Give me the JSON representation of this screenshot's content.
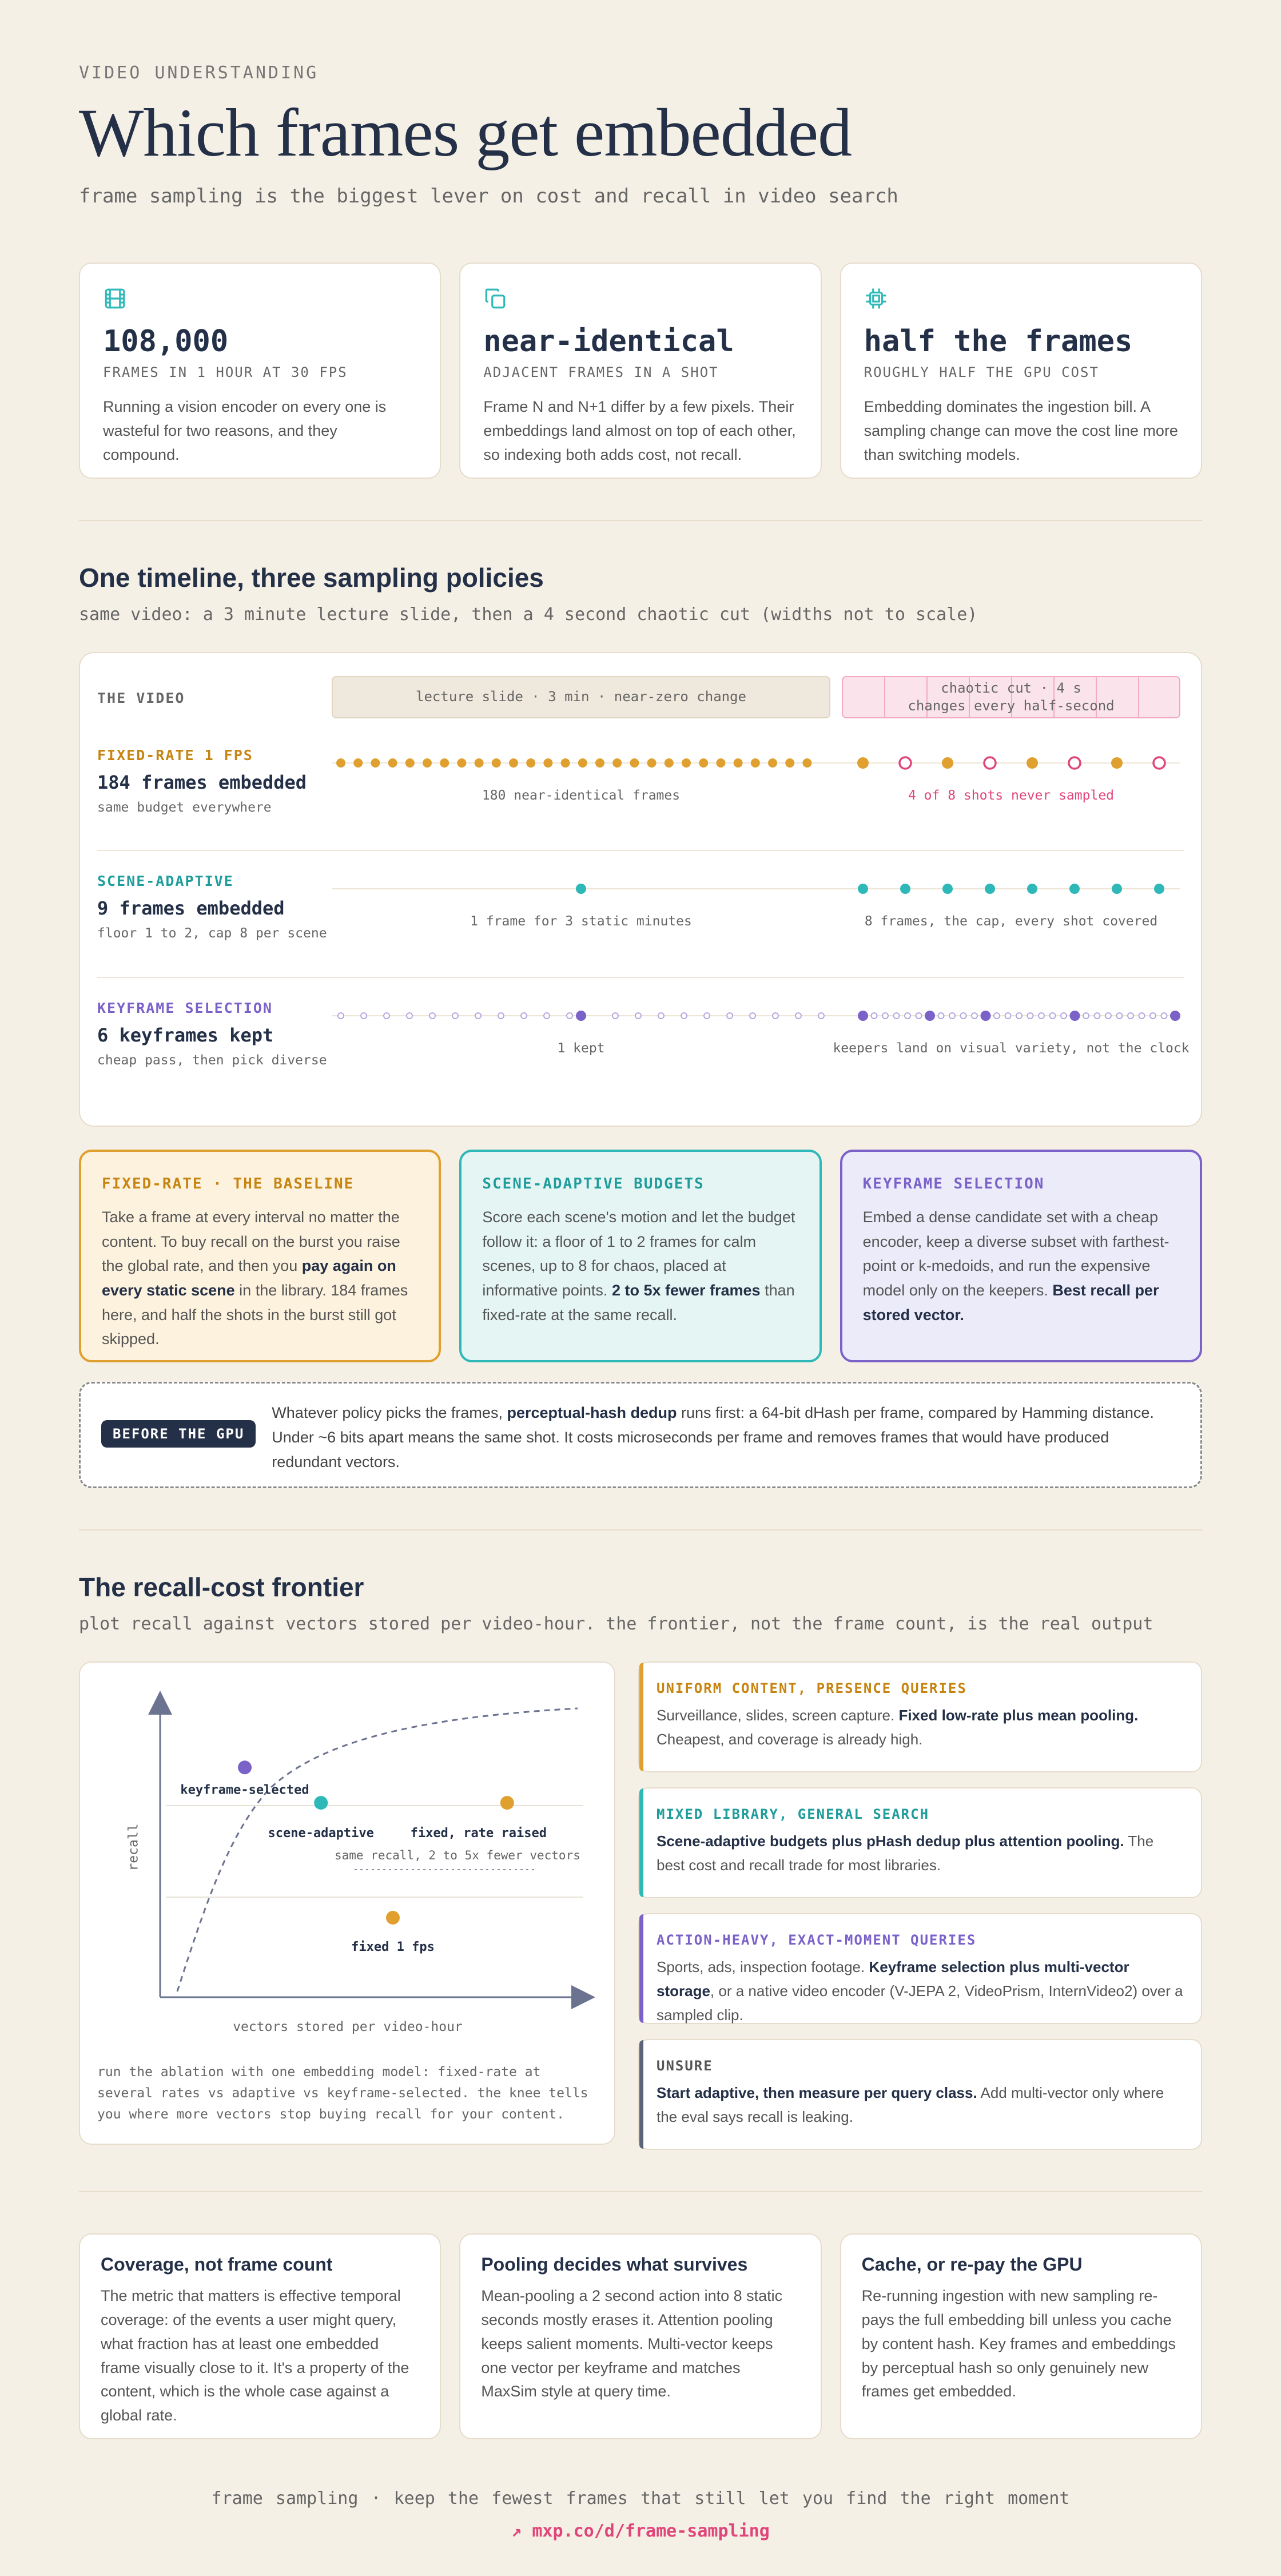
{
  "header": {
    "eyebrow": "VIDEO UNDERSTANDING",
    "title": "Which frames get embedded",
    "subtitle": "frame sampling is the biggest lever on cost and recall in video search"
  },
  "stats": [
    {
      "icon": "film-icon",
      "value": "108,000",
      "caption": "FRAMES IN 1 HOUR AT 30 FPS",
      "text": "Running a vision encoder on every one is wasteful for two reasons, and they compound."
    },
    {
      "icon": "copy-icon",
      "value": "near-identical",
      "caption": "ADJACENT FRAMES IN A SHOT",
      "text": "Frame N and N+1 differ by a few pixels. Their embeddings land almost on top of each other, so indexing both adds cost, not recall."
    },
    {
      "icon": "chip-icon",
      "value": "half the frames",
      "caption": "ROUGHLY HALF THE GPU COST",
      "text": "Embedding dominates the ingestion bill. A sampling change can move the cost line more than switching models."
    }
  ],
  "timeline": {
    "title": "One timeline, three sampling policies",
    "subtitle": "same video: a 3 minute lecture slide, then a 4 second chaotic cut (widths not to scale)",
    "video_label": "THE VIDEO",
    "lecture_segment": "lecture slide · 3 min · near-zero change",
    "chaos_segment_line1": "chaotic cut · 4 s",
    "chaos_segment_line2": "changes every half-second",
    "policies": [
      {
        "label": "FIXED-RATE 1 FPS",
        "count": "184 frames embedded",
        "note": "same budget everywhere",
        "caption_left": "180 near-identical frames",
        "caption_right": "4 of 8 shots never sampled",
        "color": "#e0a030"
      },
      {
        "label": "SCENE-ADAPTIVE",
        "count": "9 frames embedded",
        "note": "floor 1 to 2, cap 8 per scene",
        "caption_left": "1 frame for 3 static minutes",
        "caption_right": "8 frames, the cap, every shot covered",
        "color": "#2eb8b8"
      },
      {
        "label": "KEYFRAME SELECTION",
        "count": "6 keyframes kept",
        "note": "cheap pass, then pick diverse",
        "caption_left": "1 kept",
        "caption_right": "keepers land on visual variety, not the clock",
        "color": "#7b62c9"
      }
    ]
  },
  "policy_cards": {
    "fixed": {
      "title": "FIXED-RATE · THE BASELINE",
      "pre": "Take a frame at every interval no matter the content. To buy recall on the burst you raise the global rate, and then you ",
      "bold": "pay again on every static scene",
      "post": " in the library. 184 frames here, and half the shots in the burst still got skipped."
    },
    "scene": {
      "title": "SCENE-ADAPTIVE BUDGETS",
      "pre": "Score each scene's motion and let the budget follow it: a floor of 1 to 2 frames for calm scenes, up to 8 for chaos, placed at informative points. ",
      "bold": "2 to 5x fewer frames",
      "post": " than fixed-rate at the same recall."
    },
    "key": {
      "title": "KEYFRAME SELECTION",
      "pre": "Embed a dense candidate set with a cheap encoder, keep a diverse subset with farthest-point or k-medoids, and run the expensive model only on the keepers. ",
      "bold": "Best recall per stored vector.",
      "post": ""
    }
  },
  "gpu_note": {
    "badge": "BEFORE THE GPU",
    "pre": "Whatever policy picks the frames, ",
    "bold": "perceptual-hash dedup",
    "post": " runs first: a 64-bit dHash per frame, compared by Hamming distance. Under ~6 bits apart means the same shot. It costs microseconds per frame and removes frames that would have produced redundant vectors."
  },
  "frontier": {
    "title": "The recall-cost frontier",
    "subtitle": "plot recall against vectors stored per video-hour. the frontier, not the frame count, is the real output",
    "chart_data": {
      "type": "scatter",
      "xlabel": "vectors stored per video-hour",
      "ylabel": "recall",
      "annotation": "same recall, 2 to 5x fewer vectors",
      "points": [
        {
          "name": "keyframe-selected",
          "x": 0.2,
          "y": 0.78,
          "color": "#7b62c9"
        },
        {
          "name": "scene-adaptive",
          "x": 0.38,
          "y": 0.66,
          "color": "#2eb8b8"
        },
        {
          "name": "fixed, rate raised",
          "x": 0.82,
          "y": 0.66,
          "color": "#e0a030"
        },
        {
          "name": "fixed 1 fps",
          "x": 0.55,
          "y": 0.27,
          "color": "#e0a030"
        }
      ]
    },
    "note": "run the ablation with one embedding model: fixed-rate at several rates vs adaptive vs keyframe-selected. the knee tells you where more vectors stop buying recall for your content."
  },
  "guides": [
    {
      "title": "UNIFORM CONTENT, PRESENCE QUERIES",
      "pre": "Surveillance, slides, screen capture. ",
      "bold": "Fixed low-rate plus mean pooling.",
      "post": " Cheapest, and coverage is already high."
    },
    {
      "title": "MIXED LIBRARY, GENERAL SEARCH",
      "pre": "",
      "bold": "Scene-adaptive budgets plus pHash dedup plus attention pooling.",
      "post": " The best cost and recall trade for most libraries."
    },
    {
      "title": "ACTION-HEAVY, EXACT-MOMENT QUERIES",
      "pre": "Sports, ads, inspection footage. ",
      "bold": "Keyframe selection plus multi-vector storage",
      "post": ", or a native video encoder (V-JEPA 2, VideoPrism, InternVideo2) over a sampled clip."
    },
    {
      "title": "UNSURE",
      "pre": "",
      "bold": "Start adaptive, then measure per query class.",
      "post": " Add multi-vector only where the eval says recall is leaking."
    }
  ],
  "bottom": [
    {
      "title": "Coverage, not frame count",
      "text": "The metric that matters is effective temporal coverage: of the events a user might query, what fraction has at least one embedded frame visually close to it. It's a property of the content, which is the whole case against a global rate."
    },
    {
      "title": "Pooling decides what survives",
      "text": "Mean-pooling a 2 second action into 8 static seconds mostly erases it. Attention pooling keeps salient moments. Multi-vector keeps one vector per keyframe and matches MaxSim style at query time."
    },
    {
      "title": "Cache, or re-pay the GPU",
      "text": "Re-running ingestion with new sampling re-pays the full embedding bill unless you cache by content hash. Key frames and embeddings by perceptual hash so only genuinely new frames get embedded."
    }
  ],
  "footer": {
    "tagline": "frame sampling  ·  keep the fewest frames that still let you find the right moment",
    "link": "↗ mxp.co/d/frame-sampling"
  }
}
